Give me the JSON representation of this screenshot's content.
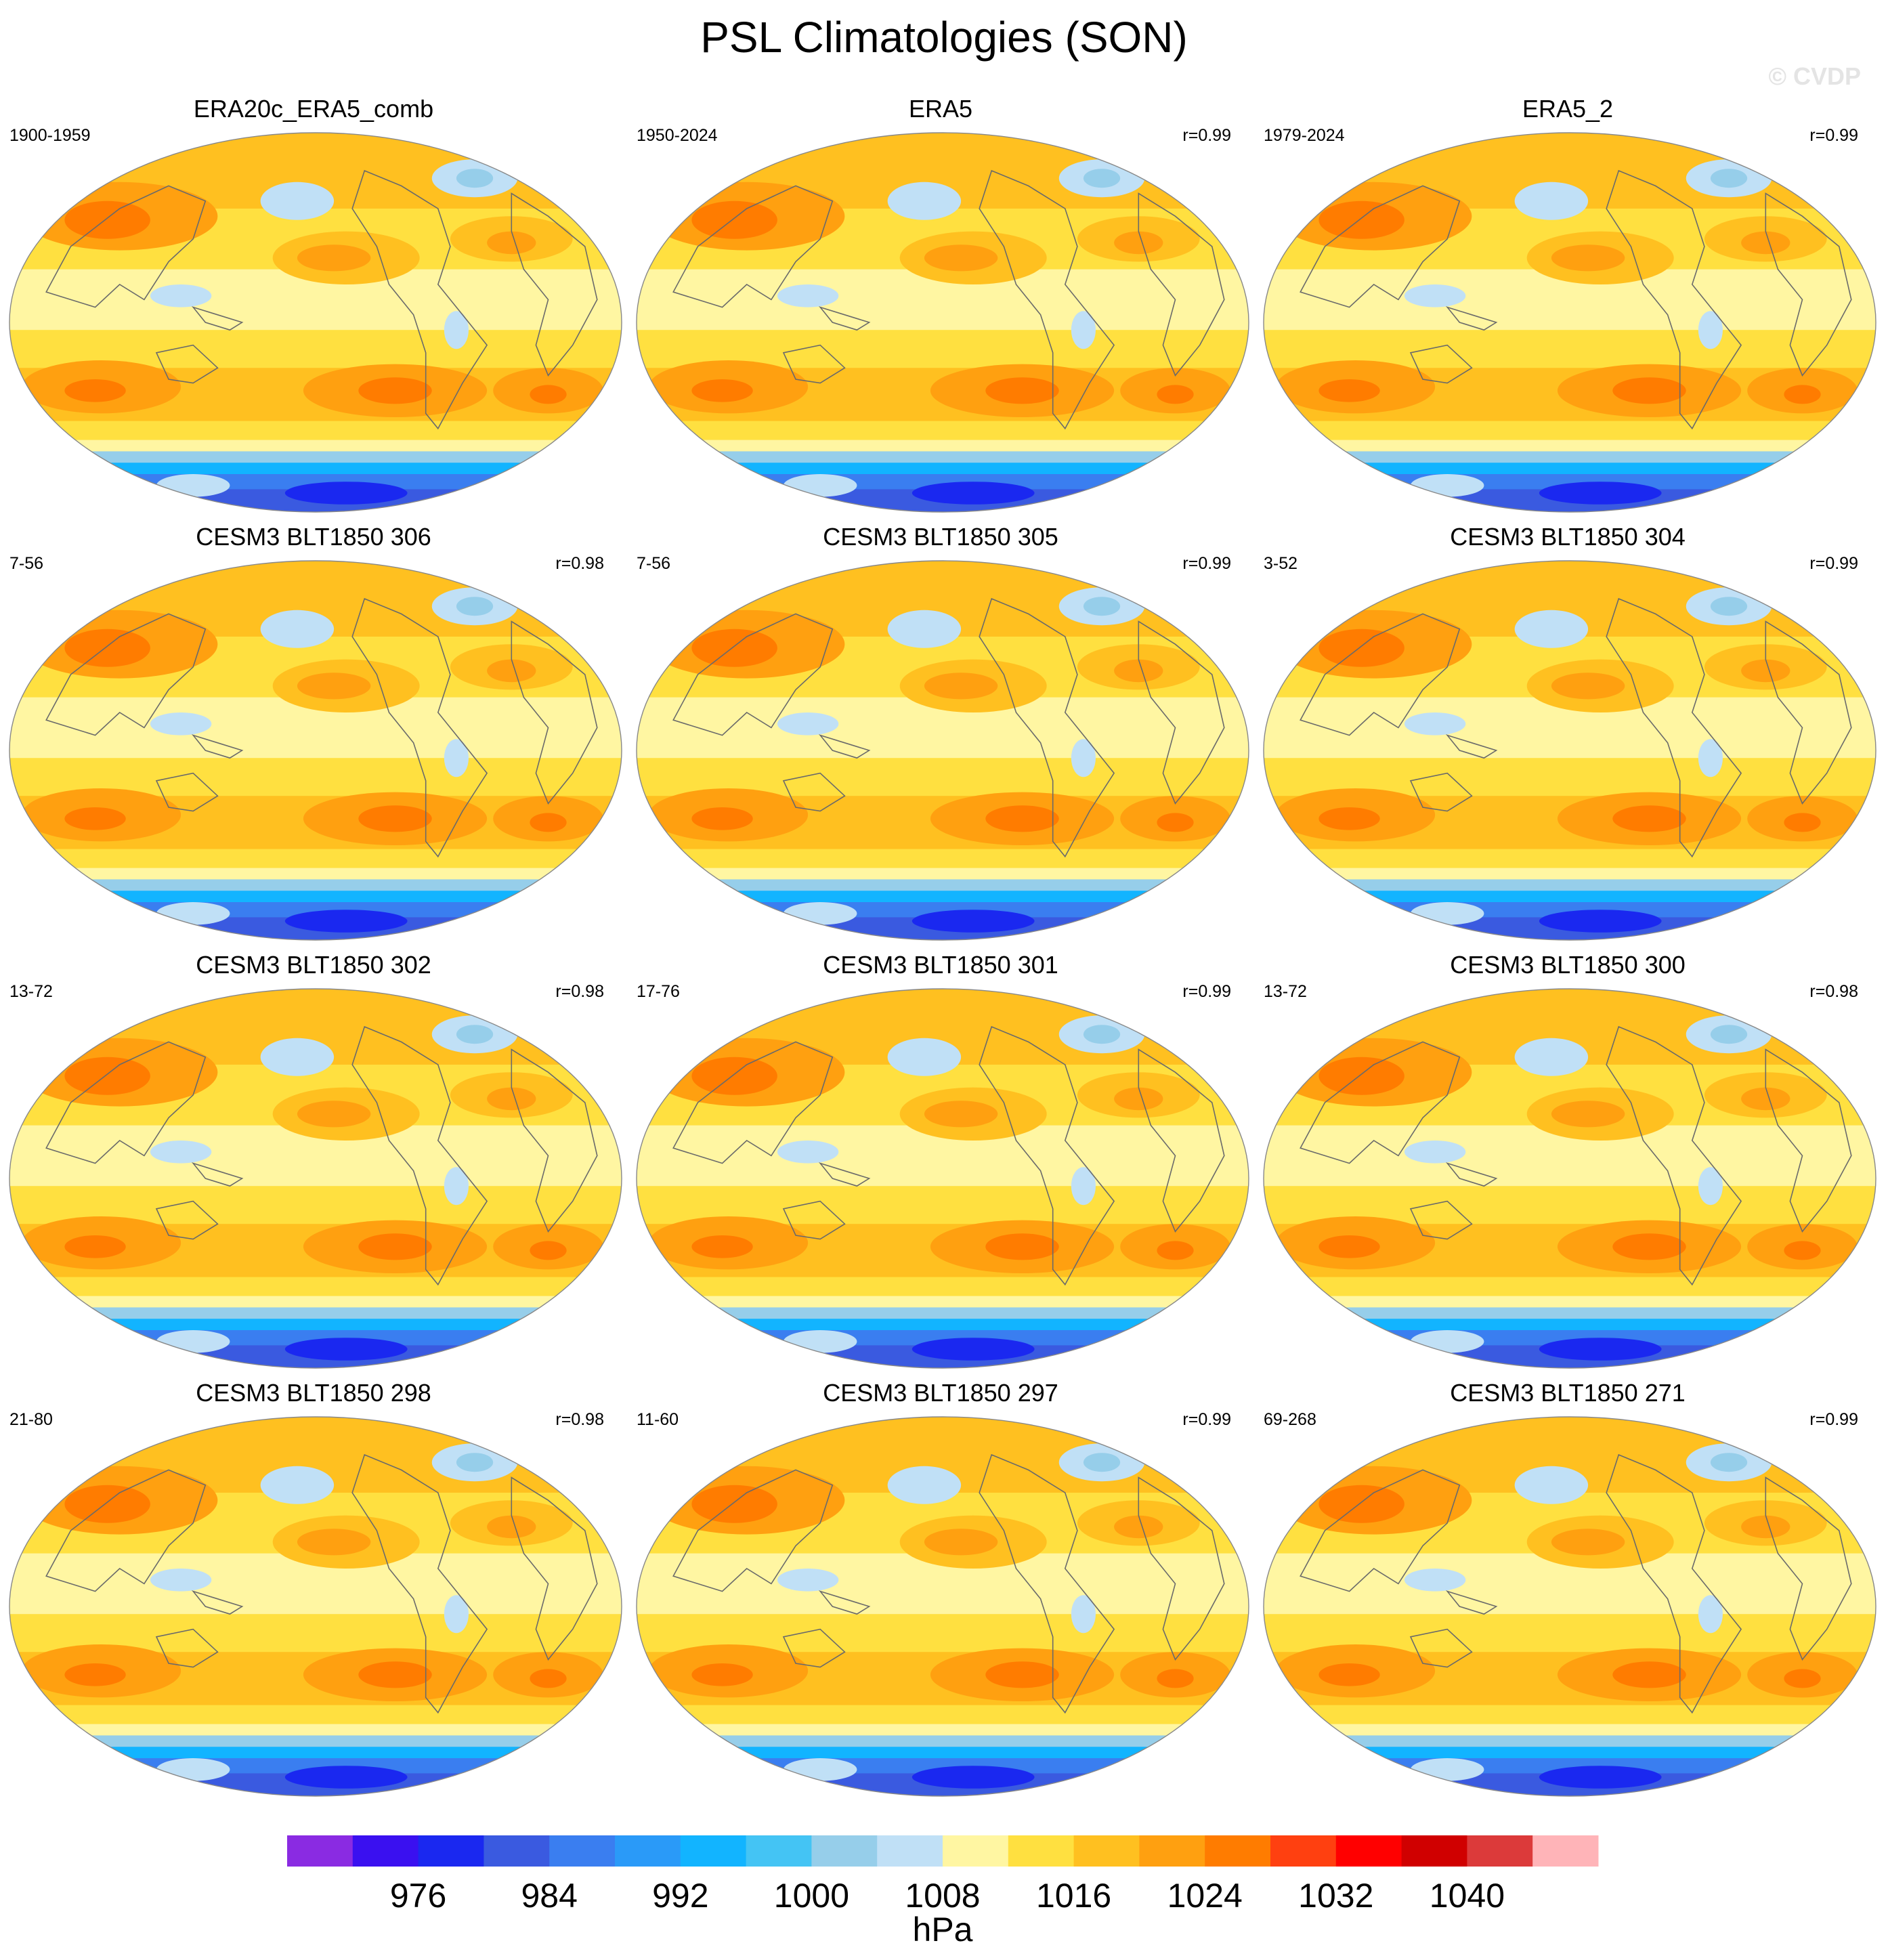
{
  "title": "PSL Climatologies (SON)",
  "watermark": "© CVDP",
  "chart_data": {
    "type": "heatmap",
    "projection": "robinson",
    "panels": [
      {
        "title": "ERA20c_ERA5_comb",
        "years": "1900-1959",
        "r": ""
      },
      {
        "title": "ERA5",
        "years": "1950-2024",
        "r": "r=0.99"
      },
      {
        "title": "ERA5_2",
        "years": "1979-2024",
        "r": "r=0.99"
      },
      {
        "title": "CESM3 BLT1850 306",
        "years": "7-56",
        "r": "r=0.98"
      },
      {
        "title": "CESM3 BLT1850 305",
        "years": "7-56",
        "r": "r=0.99"
      },
      {
        "title": "CESM3 BLT1850 304",
        "years": "3-52",
        "r": "r=0.99"
      },
      {
        "title": "CESM3 BLT1850 302",
        "years": "13-72",
        "r": "r=0.98"
      },
      {
        "title": "CESM3 BLT1850 301",
        "years": "17-76",
        "r": "r=0.99"
      },
      {
        "title": "CESM3 BLT1850 300",
        "years": "13-72",
        "r": "r=0.98"
      },
      {
        "title": "CESM3 BLT1850 298",
        "years": "21-80",
        "r": "r=0.98"
      },
      {
        "title": "CESM3 BLT1850 297",
        "years": "11-60",
        "r": "r=0.99"
      },
      {
        "title": "CESM3 BLT1850 271",
        "years": "69-268",
        "r": "r=0.99"
      }
    ],
    "colorbar": {
      "unit": "hPa",
      "levels": [
        972,
        976,
        980,
        984,
        988,
        992,
        996,
        1000,
        1004,
        1008,
        1012,
        1016,
        1020,
        1024,
        1028,
        1032,
        1036,
        1040,
        1044
      ],
      "labels": [
        "976",
        "984",
        "992",
        "1000",
        "1008",
        "1016",
        "1024",
        "1032",
        "1040"
      ],
      "colors": [
        "#8a2be2",
        "#3a10f0",
        "#1a28f0",
        "#3a5ae0",
        "#3a7ef0",
        "#2a9af8",
        "#12b4ff",
        "#44c4f4",
        "#96ceea",
        "#c0e0f6",
        "#fff6a2",
        "#ffe040",
        "#ffc020",
        "#ffa010",
        "#ff7c00",
        "#ff4010",
        "#ff0000",
        "#d00000",
        "#dc3a3a",
        "#ffb4b8"
      ]
    }
  }
}
